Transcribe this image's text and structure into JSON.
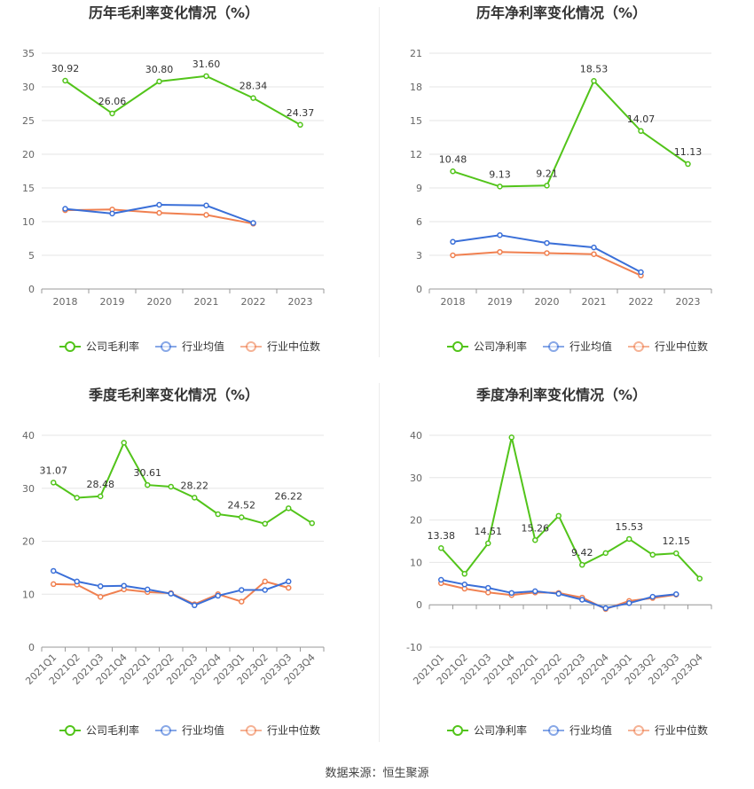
{
  "footer": "数据来源：恒生聚源",
  "colors": {
    "company": "#52c41a",
    "industry_avg": "#3a6fd8",
    "industry_median": "#f08050"
  },
  "chart_data": [
    {
      "type": "line",
      "title": "历年毛利率变化情况（%）",
      "categories": [
        "2018",
        "2019",
        "2020",
        "2021",
        "2022",
        "2023"
      ],
      "ylim": [
        0,
        35
      ],
      "yticks": [
        "0",
        "5",
        "10",
        "15",
        "20",
        "25",
        "30",
        "35"
      ],
      "grid": true,
      "legend": "bottom",
      "series": [
        {
          "name": "公司毛利率",
          "key": "company",
          "values": [
            30.92,
            26.06,
            30.8,
            31.6,
            28.34,
            24.37
          ],
          "labels": [
            "30.92",
            "26.06",
            "30.80",
            "31.60",
            "28.34",
            "24.37"
          ]
        },
        {
          "name": "行业均值",
          "key": "industry_avg",
          "values": [
            11.9,
            11.2,
            12.5,
            12.4,
            9.8,
            null
          ]
        },
        {
          "name": "行业中位数",
          "key": "industry_median",
          "values": [
            11.7,
            11.8,
            11.3,
            11.0,
            9.7,
            null
          ]
        }
      ]
    },
    {
      "type": "line",
      "title": "历年净利率变化情况（%）",
      "categories": [
        "2018",
        "2019",
        "2020",
        "2021",
        "2022",
        "2023"
      ],
      "ylim": [
        0,
        21
      ],
      "yticks": [
        "0",
        "3",
        "6",
        "9",
        "12",
        "15",
        "18",
        "21"
      ],
      "grid": true,
      "legend": "bottom",
      "series": [
        {
          "name": "公司净利率",
          "key": "company",
          "values": [
            10.48,
            9.13,
            9.21,
            18.53,
            14.07,
            11.13
          ],
          "labels": [
            "10.48",
            "9.13",
            "9.21",
            "18.53",
            "14.07",
            "11.13"
          ]
        },
        {
          "name": "行业均值",
          "key": "industry_avg",
          "values": [
            4.2,
            4.8,
            4.1,
            3.7,
            1.5,
            null
          ]
        },
        {
          "name": "行业中位数",
          "key": "industry_median",
          "values": [
            3.0,
            3.3,
            3.2,
            3.1,
            1.2,
            null
          ]
        }
      ]
    },
    {
      "type": "line",
      "title": "季度毛利率变化情况（%）",
      "categories": [
        "2021Q1",
        "2021Q2",
        "2021Q3",
        "2021Q4",
        "2022Q1",
        "2022Q2",
        "2022Q3",
        "2022Q4",
        "2023Q1",
        "2023Q2",
        "2023Q3",
        "2023Q4"
      ],
      "ylim": [
        0,
        40
      ],
      "yticks": [
        "0",
        "10",
        "20",
        "30",
        "40"
      ],
      "grid": true,
      "legend": "bottom",
      "series": [
        {
          "name": "公司毛利率",
          "key": "company",
          "values": [
            31.07,
            28.2,
            28.48,
            38.6,
            30.61,
            30.3,
            28.22,
            25.1,
            24.52,
            23.3,
            26.22,
            23.4
          ],
          "labels": [
            "31.07",
            "",
            "28.48",
            "",
            "30.61",
            "",
            "28.22",
            "",
            "24.52",
            "",
            "26.22",
            ""
          ]
        },
        {
          "name": "行业均值",
          "key": "industry_avg",
          "values": [
            14.4,
            12.4,
            11.5,
            11.6,
            10.9,
            10.1,
            7.9,
            9.7,
            10.8,
            10.8,
            12.4,
            null
          ]
        },
        {
          "name": "行业中位数",
          "key": "industry_median",
          "values": [
            11.9,
            11.8,
            9.5,
            10.9,
            10.4,
            10.2,
            8.1,
            10.0,
            8.6,
            12.4,
            11.2,
            null
          ]
        }
      ]
    },
    {
      "type": "line",
      "title": "季度净利率变化情况（%）",
      "categories": [
        "2021Q1",
        "2021Q2",
        "2021Q3",
        "2021Q4",
        "2022Q1",
        "2022Q2",
        "2022Q3",
        "2022Q4",
        "2023Q1",
        "2023Q2",
        "2023Q3",
        "2023Q4"
      ],
      "ylim": [
        -10,
        40
      ],
      "yticks": [
        "-10",
        "0",
        "10",
        "20",
        "30",
        "40"
      ],
      "grid": true,
      "legend": "bottom",
      "series": [
        {
          "name": "公司净利率",
          "key": "company",
          "values": [
            13.38,
            7.3,
            14.51,
            39.5,
            15.26,
            21.0,
            9.42,
            12.2,
            15.53,
            11.8,
            12.15,
            6.2
          ],
          "labels": [
            "13.38",
            "",
            "14.51",
            "",
            "15.26",
            "",
            "9.42",
            "",
            "15.53",
            "",
            "12.15",
            ""
          ]
        },
        {
          "name": "行业均值",
          "key": "industry_avg",
          "values": [
            5.9,
            4.8,
            4.0,
            2.8,
            3.2,
            2.6,
            1.2,
            -0.8,
            0.4,
            1.9,
            2.5,
            null
          ]
        },
        {
          "name": "行业中位数",
          "key": "industry_median",
          "values": [
            5.1,
            3.8,
            2.9,
            2.3,
            2.9,
            2.8,
            1.7,
            -1.0,
            0.9,
            1.6,
            2.4,
            null
          ]
        }
      ]
    }
  ]
}
